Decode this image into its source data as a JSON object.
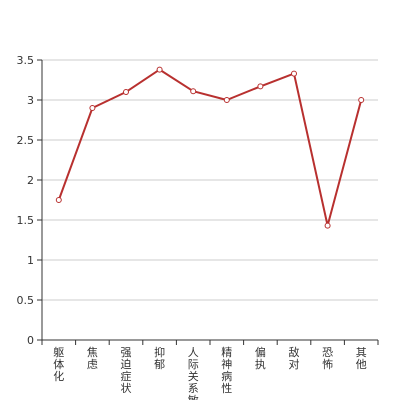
{
  "chart_data": {
    "type": "line",
    "title": "",
    "xlabel": "",
    "ylabel": "",
    "categories": [
      "躯体化",
      "焦虑",
      "强迫症状",
      "抑郁",
      "人际关系敏感",
      "精神病性",
      "偏执",
      "敌对",
      "恐怖",
      "其他"
    ],
    "series": [
      {
        "values": [
          1.75,
          2.9,
          3.1,
          3.38,
          3.11,
          3.0,
          3.17,
          3.33,
          1.43,
          3.0
        ]
      }
    ],
    "ylim": [
      0,
      3.5
    ],
    "yticks": [
      "0",
      "0.5",
      "1",
      "1.5",
      "2",
      "2.5",
      "3",
      "3.5"
    ],
    "grid": true,
    "legend": "none",
    "line_color": "#b8302f",
    "grid_color": "#cccccc",
    "axis_color": "#333333"
  }
}
